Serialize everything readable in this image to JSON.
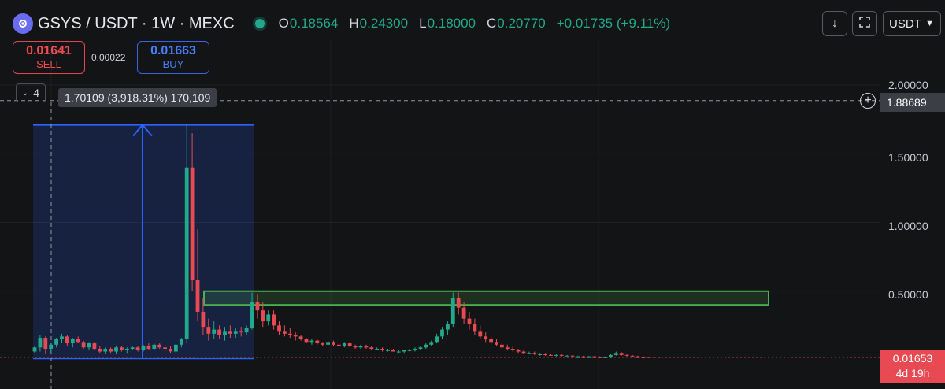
{
  "header": {
    "symbol_title": "GSYS / USDT · 1W · MEXC",
    "ohlc": {
      "o_label": "O",
      "o_value": "0.18564",
      "h_label": "H",
      "h_value": "0.24300",
      "l_label": "L",
      "l_value": "0.18000",
      "c_label": "C",
      "c_value": "0.20770",
      "change": "+0.01735 (+9.11%)"
    },
    "currency": "USDT"
  },
  "trade": {
    "sell_price": "0.01641",
    "sell_label": "SELL",
    "spread": "0.00022",
    "buy_price": "0.01663",
    "buy_label": "BUY"
  },
  "indicators_toggle": {
    "count": "4"
  },
  "measure_label": "1.70109 (3,918.31%) 170,109",
  "crosshair_price": "1.88689",
  "last_price": {
    "price": "0.01653",
    "countdown": "4d 19h"
  },
  "colors": {
    "up": "#22a88a",
    "down": "#e84a53",
    "measure": "#2962ff",
    "zone": "#4caf50",
    "accent": "#2962ff"
  },
  "icons": [
    "gsys-logo-icon",
    "download-icon",
    "fullscreen-icon",
    "chevron-down-icon",
    "plus-circle-icon"
  ],
  "chart_data": {
    "type": "candlestick",
    "title": "GSYS / USDT · 1W · MEXC",
    "y_ticks": [
      "2.00000",
      "1.50000",
      "1.00000",
      "0.50000"
    ],
    "y_tick_values": [
      2.0,
      1.5,
      1.0,
      0.5
    ],
    "ylim": [
      0,
      2.0
    ],
    "grid": true,
    "candles": [
      {
        "o": 0.06,
        "h": 0.1,
        "l": 0.05,
        "c": 0.09
      },
      {
        "o": 0.09,
        "h": 0.18,
        "l": 0.06,
        "c": 0.16
      },
      {
        "o": 0.16,
        "h": 0.17,
        "l": 0.04,
        "c": 0.08
      },
      {
        "o": 0.08,
        "h": 0.12,
        "l": 0.05,
        "c": 0.11
      },
      {
        "o": 0.11,
        "h": 0.16,
        "l": 0.09,
        "c": 0.15
      },
      {
        "o": 0.15,
        "h": 0.19,
        "l": 0.12,
        "c": 0.17
      },
      {
        "o": 0.17,
        "h": 0.18,
        "l": 0.1,
        "c": 0.12
      },
      {
        "o": 0.12,
        "h": 0.16,
        "l": 0.09,
        "c": 0.15
      },
      {
        "o": 0.15,
        "h": 0.17,
        "l": 0.12,
        "c": 0.13
      },
      {
        "o": 0.13,
        "h": 0.14,
        "l": 0.08,
        "c": 0.09
      },
      {
        "o": 0.09,
        "h": 0.13,
        "l": 0.07,
        "c": 0.12
      },
      {
        "o": 0.12,
        "h": 0.13,
        "l": 0.07,
        "c": 0.08
      },
      {
        "o": 0.08,
        "h": 0.1,
        "l": 0.05,
        "c": 0.06
      },
      {
        "o": 0.06,
        "h": 0.09,
        "l": 0.04,
        "c": 0.08
      },
      {
        "o": 0.08,
        "h": 0.09,
        "l": 0.05,
        "c": 0.06
      },
      {
        "o": 0.06,
        "h": 0.1,
        "l": 0.04,
        "c": 0.09
      },
      {
        "o": 0.09,
        "h": 0.1,
        "l": 0.06,
        "c": 0.07
      },
      {
        "o": 0.07,
        "h": 0.09,
        "l": 0.05,
        "c": 0.08
      },
      {
        "o": 0.08,
        "h": 0.1,
        "l": 0.07,
        "c": 0.09
      },
      {
        "o": 0.09,
        "h": 0.1,
        "l": 0.06,
        "c": 0.07
      },
      {
        "o": 0.07,
        "h": 0.11,
        "l": 0.06,
        "c": 0.1
      },
      {
        "o": 0.1,
        "h": 0.12,
        "l": 0.07,
        "c": 0.08
      },
      {
        "o": 0.08,
        "h": 0.12,
        "l": 0.07,
        "c": 0.11
      },
      {
        "o": 0.11,
        "h": 0.12,
        "l": 0.08,
        "c": 0.09
      },
      {
        "o": 0.09,
        "h": 0.11,
        "l": 0.06,
        "c": 0.08
      },
      {
        "o": 0.08,
        "h": 0.1,
        "l": 0.05,
        "c": 0.06
      },
      {
        "o": 0.06,
        "h": 0.12,
        "l": 0.05,
        "c": 0.11
      },
      {
        "o": 0.11,
        "h": 0.16,
        "l": 0.09,
        "c": 0.15
      },
      {
        "o": 0.15,
        "h": 1.72,
        "l": 0.12,
        "c": 1.4
      },
      {
        "o": 1.4,
        "h": 1.65,
        "l": 0.5,
        "c": 0.58
      },
      {
        "o": 0.58,
        "h": 0.95,
        "l": 0.28,
        "c": 0.35
      },
      {
        "o": 0.35,
        "h": 0.45,
        "l": 0.18,
        "c": 0.24
      },
      {
        "o": 0.24,
        "h": 0.3,
        "l": 0.14,
        "c": 0.19
      },
      {
        "o": 0.19,
        "h": 0.28,
        "l": 0.15,
        "c": 0.22
      },
      {
        "o": 0.22,
        "h": 0.25,
        "l": 0.15,
        "c": 0.18
      },
      {
        "o": 0.18,
        "h": 0.24,
        "l": 0.14,
        "c": 0.21
      },
      {
        "o": 0.21,
        "h": 0.25,
        "l": 0.16,
        "c": 0.19
      },
      {
        "o": 0.19,
        "h": 0.23,
        "l": 0.16,
        "c": 0.21
      },
      {
        "o": 0.21,
        "h": 0.24,
        "l": 0.17,
        "c": 0.2
      },
      {
        "o": 0.2,
        "h": 0.25,
        "l": 0.18,
        "c": 0.23
      },
      {
        "o": 0.23,
        "h": 0.49,
        "l": 0.22,
        "c": 0.42
      },
      {
        "o": 0.42,
        "h": 0.48,
        "l": 0.3,
        "c": 0.36
      },
      {
        "o": 0.36,
        "h": 0.42,
        "l": 0.24,
        "c": 0.28
      },
      {
        "o": 0.28,
        "h": 0.36,
        "l": 0.25,
        "c": 0.33
      },
      {
        "o": 0.33,
        "h": 0.36,
        "l": 0.22,
        "c": 0.25
      },
      {
        "o": 0.25,
        "h": 0.28,
        "l": 0.18,
        "c": 0.21
      },
      {
        "o": 0.21,
        "h": 0.25,
        "l": 0.17,
        "c": 0.19
      },
      {
        "o": 0.19,
        "h": 0.23,
        "l": 0.16,
        "c": 0.18
      },
      {
        "o": 0.18,
        "h": 0.2,
        "l": 0.14,
        "c": 0.17
      },
      {
        "o": 0.17,
        "h": 0.18,
        "l": 0.14,
        "c": 0.15
      },
      {
        "o": 0.15,
        "h": 0.16,
        "l": 0.12,
        "c": 0.13
      },
      {
        "o": 0.13,
        "h": 0.15,
        "l": 0.11,
        "c": 0.14
      },
      {
        "o": 0.14,
        "h": 0.15,
        "l": 0.11,
        "c": 0.12
      },
      {
        "o": 0.12,
        "h": 0.13,
        "l": 0.1,
        "c": 0.11
      },
      {
        "o": 0.11,
        "h": 0.14,
        "l": 0.1,
        "c": 0.13
      },
      {
        "o": 0.13,
        "h": 0.14,
        "l": 0.1,
        "c": 0.11
      },
      {
        "o": 0.11,
        "h": 0.12,
        "l": 0.09,
        "c": 0.1
      },
      {
        "o": 0.1,
        "h": 0.13,
        "l": 0.09,
        "c": 0.12
      },
      {
        "o": 0.12,
        "h": 0.13,
        "l": 0.09,
        "c": 0.1
      },
      {
        "o": 0.1,
        "h": 0.11,
        "l": 0.08,
        "c": 0.09
      },
      {
        "o": 0.09,
        "h": 0.11,
        "l": 0.08,
        "c": 0.1
      },
      {
        "o": 0.1,
        "h": 0.11,
        "l": 0.08,
        "c": 0.09
      },
      {
        "o": 0.09,
        "h": 0.1,
        "l": 0.07,
        "c": 0.08
      },
      {
        "o": 0.08,
        "h": 0.09,
        "l": 0.07,
        "c": 0.08
      },
      {
        "o": 0.08,
        "h": 0.09,
        "l": 0.06,
        "c": 0.07
      },
      {
        "o": 0.07,
        "h": 0.08,
        "l": 0.06,
        "c": 0.07
      },
      {
        "o": 0.07,
        "h": 0.08,
        "l": 0.06,
        "c": 0.06
      },
      {
        "o": 0.06,
        "h": 0.07,
        "l": 0.05,
        "c": 0.06
      },
      {
        "o": 0.06,
        "h": 0.07,
        "l": 0.05,
        "c": 0.07
      },
      {
        "o": 0.07,
        "h": 0.08,
        "l": 0.06,
        "c": 0.07
      },
      {
        "o": 0.07,
        "h": 0.09,
        "l": 0.06,
        "c": 0.08
      },
      {
        "o": 0.08,
        "h": 0.1,
        "l": 0.07,
        "c": 0.09
      },
      {
        "o": 0.09,
        "h": 0.12,
        "l": 0.08,
        "c": 0.11
      },
      {
        "o": 0.11,
        "h": 0.14,
        "l": 0.1,
        "c": 0.13
      },
      {
        "o": 0.13,
        "h": 0.19,
        "l": 0.12,
        "c": 0.17
      },
      {
        "o": 0.17,
        "h": 0.24,
        "l": 0.15,
        "c": 0.22
      },
      {
        "o": 0.22,
        "h": 0.28,
        "l": 0.18,
        "c": 0.26
      },
      {
        "o": 0.26,
        "h": 0.49,
        "l": 0.24,
        "c": 0.45
      },
      {
        "o": 0.45,
        "h": 0.49,
        "l": 0.33,
        "c": 0.38
      },
      {
        "o": 0.38,
        "h": 0.42,
        "l": 0.26,
        "c": 0.3
      },
      {
        "o": 0.3,
        "h": 0.35,
        "l": 0.22,
        "c": 0.26
      },
      {
        "o": 0.26,
        "h": 0.3,
        "l": 0.18,
        "c": 0.21
      },
      {
        "o": 0.21,
        "h": 0.25,
        "l": 0.15,
        "c": 0.17
      },
      {
        "o": 0.17,
        "h": 0.2,
        "l": 0.13,
        "c": 0.15
      },
      {
        "o": 0.15,
        "h": 0.18,
        "l": 0.11,
        "c": 0.13
      },
      {
        "o": 0.13,
        "h": 0.15,
        "l": 0.1,
        "c": 0.11
      },
      {
        "o": 0.11,
        "h": 0.13,
        "l": 0.08,
        "c": 0.09
      },
      {
        "o": 0.09,
        "h": 0.11,
        "l": 0.07,
        "c": 0.08
      },
      {
        "o": 0.08,
        "h": 0.1,
        "l": 0.06,
        "c": 0.07
      },
      {
        "o": 0.07,
        "h": 0.08,
        "l": 0.05,
        "c": 0.06
      },
      {
        "o": 0.06,
        "h": 0.07,
        "l": 0.04,
        "c": 0.05
      },
      {
        "o": 0.05,
        "h": 0.06,
        "l": 0.04,
        "c": 0.05
      },
      {
        "o": 0.05,
        "h": 0.06,
        "l": 0.035,
        "c": 0.04
      },
      {
        "o": 0.04,
        "h": 0.05,
        "l": 0.03,
        "c": 0.04
      },
      {
        "o": 0.04,
        "h": 0.05,
        "l": 0.03,
        "c": 0.035
      },
      {
        "o": 0.035,
        "h": 0.04,
        "l": 0.03,
        "c": 0.03
      },
      {
        "o": 0.03,
        "h": 0.04,
        "l": 0.025,
        "c": 0.035
      },
      {
        "o": 0.035,
        "h": 0.04,
        "l": 0.025,
        "c": 0.03
      },
      {
        "o": 0.03,
        "h": 0.035,
        "l": 0.025,
        "c": 0.03
      },
      {
        "o": 0.03,
        "h": 0.035,
        "l": 0.02,
        "c": 0.025
      },
      {
        "o": 0.025,
        "h": 0.03,
        "l": 0.02,
        "c": 0.025
      },
      {
        "o": 0.025,
        "h": 0.03,
        "l": 0.02,
        "c": 0.022
      },
      {
        "o": 0.022,
        "h": 0.028,
        "l": 0.02,
        "c": 0.025
      },
      {
        "o": 0.025,
        "h": 0.027,
        "l": 0.02,
        "c": 0.022
      },
      {
        "o": 0.022,
        "h": 0.025,
        "l": 0.018,
        "c": 0.02
      },
      {
        "o": 0.02,
        "h": 0.024,
        "l": 0.018,
        "c": 0.022
      },
      {
        "o": 0.022,
        "h": 0.04,
        "l": 0.02,
        "c": 0.035
      },
      {
        "o": 0.035,
        "h": 0.06,
        "l": 0.03,
        "c": 0.05
      },
      {
        "o": 0.05,
        "h": 0.055,
        "l": 0.03,
        "c": 0.035
      },
      {
        "o": 0.035,
        "h": 0.04,
        "l": 0.025,
        "c": 0.03
      },
      {
        "o": 0.03,
        "h": 0.035,
        "l": 0.022,
        "c": 0.025
      },
      {
        "o": 0.025,
        "h": 0.03,
        "l": 0.02,
        "c": 0.022
      },
      {
        "o": 0.022,
        "h": 0.025,
        "l": 0.018,
        "c": 0.02
      },
      {
        "o": 0.02,
        "h": 0.022,
        "l": 0.017,
        "c": 0.019
      },
      {
        "o": 0.019,
        "h": 0.021,
        "l": 0.016,
        "c": 0.018
      },
      {
        "o": 0.018,
        "h": 0.02,
        "l": 0.016,
        "c": 0.017
      },
      {
        "o": 0.017,
        "h": 0.019,
        "l": 0.015,
        "c": 0.0165
      }
    ],
    "measure_range": {
      "from": 0.01,
      "to": 1.71
    },
    "resistance_zone": {
      "low": 0.4,
      "high": 0.5
    },
    "crosshair_value": 1.88689,
    "last_value": 0.01653
  }
}
